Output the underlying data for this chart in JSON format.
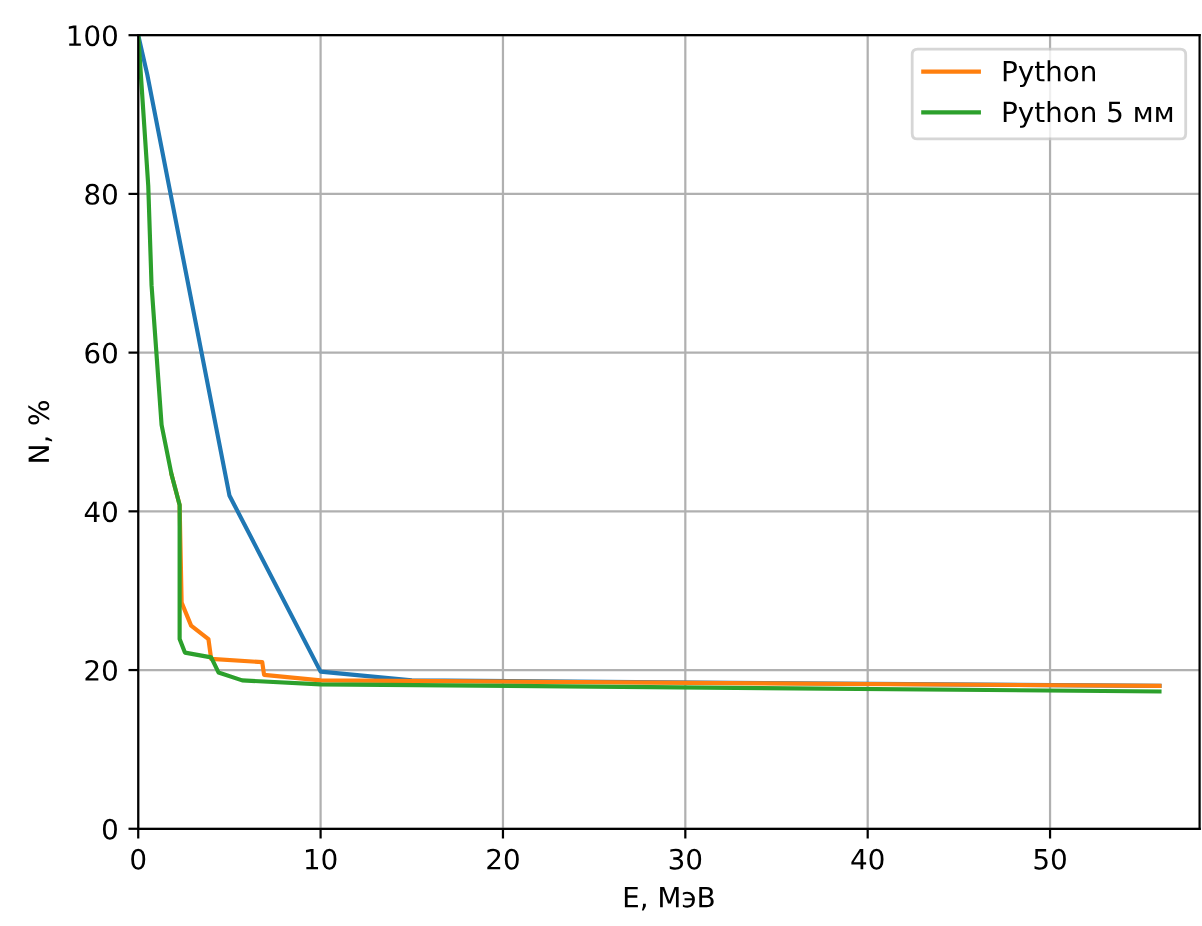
{
  "chart_data": {
    "type": "line",
    "xlabel": "E, МэВ",
    "ylabel": "N, %",
    "xlim": [
      0,
      58.2
    ],
    "ylim": [
      0,
      100
    ],
    "xticks": [
      0,
      10,
      20,
      30,
      40,
      50
    ],
    "yticks": [
      0,
      20,
      40,
      60,
      80,
      100
    ],
    "grid": true,
    "legend": "top right",
    "marker": "none",
    "line_style": "solid",
    "series": [
      {
        "color": "#1f77b4",
        "x": [
          0,
          0.5,
          5,
          10,
          15,
          56
        ],
        "values": [
          100,
          95,
          42,
          19.8,
          18.7,
          18
        ]
      },
      {
        "name": "Python",
        "color": "#ff7f0e",
        "x": [
          1.83,
          2.27,
          2.38,
          2.9,
          3.85,
          4.0,
          6.8,
          6.9,
          10,
          56
        ],
        "values": [
          44.6,
          40.8,
          28.5,
          25.6,
          23.9,
          21.4,
          21,
          19.4,
          18.7,
          18
        ]
      },
      {
        "name": "Python 5 мм",
        "color": "#2ca02c",
        "x": [
          0,
          0.55,
          0.73,
          1.28,
          1.83,
          2.27,
          2.27,
          2.56,
          4.0,
          4.4,
          5.7,
          10,
          56
        ],
        "values": [
          100,
          81,
          68.5,
          50.9,
          44.6,
          40.8,
          23.9,
          22.2,
          21.6,
          19.7,
          18.7,
          18.2,
          17.3
        ]
      }
    ]
  }
}
